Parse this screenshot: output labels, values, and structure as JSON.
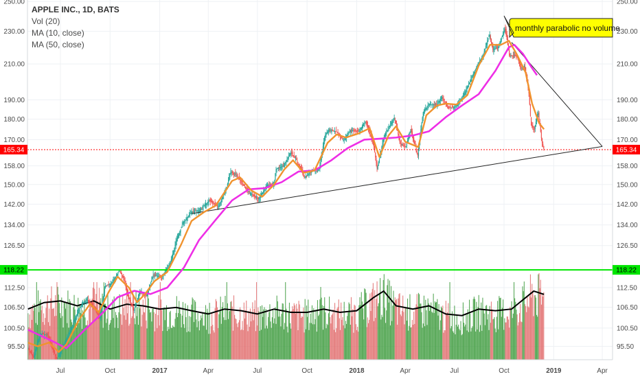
{
  "chart_data": {
    "type": "candlestick",
    "title": "APPLE INC., 1D, BATS",
    "indicators": [
      "Vol (20)",
      "MA (10, close)",
      "MA (50, close)"
    ],
    "y_scale": "log",
    "ylim": [
      92,
      251
    ],
    "price_ticks": [
      "250.00",
      "230.00",
      "210.00",
      "190.00",
      "180.00",
      "170.00",
      "158.00",
      "150.00",
      "142.00",
      "134.00",
      "126.50",
      "118.22",
      "112.50",
      "106.50",
      "100.50",
      "95.50"
    ],
    "price_tick_values": [
      250,
      230,
      210,
      190,
      180,
      170,
      158,
      150,
      142,
      134,
      126.5,
      118.22,
      112.5,
      106.5,
      100.5,
      95.5
    ],
    "time_ticks": [
      "Jul",
      "Oct",
      "2017",
      "Apr",
      "Jul",
      "Oct",
      "2018",
      "Apr",
      "Jul",
      "Oct",
      "2019",
      "Apr"
    ],
    "time_tick_dates": [
      "2016-07-01",
      "2016-10-01",
      "2017-01-01",
      "2017-04-01",
      "2017-07-01",
      "2017-10-01",
      "2018-01-01",
      "2018-04-01",
      "2018-07-01",
      "2018-10-01",
      "2019-01-01",
      "2019-04-01"
    ],
    "x_range": [
      "2016-05-01",
      "2019-04-20"
    ],
    "close_path": [
      [
        "2016-05-02",
        95.0
      ],
      [
        "2016-05-12",
        92.5
      ],
      [
        "2016-05-25",
        99.0
      ],
      [
        "2016-06-08",
        98.5
      ],
      [
        "2016-06-24",
        92.0
      ],
      [
        "2016-07-05",
        95.0
      ],
      [
        "2016-07-20",
        100.0
      ],
      [
        "2016-08-05",
        106.0
      ],
      [
        "2016-08-18",
        109.0
      ],
      [
        "2016-09-01",
        106.5
      ],
      [
        "2016-09-12",
        103.0
      ],
      [
        "2016-09-22",
        113.0
      ],
      [
        "2016-10-05",
        114.0
      ],
      [
        "2016-10-18",
        118.0
      ],
      [
        "2016-10-26",
        115.5
      ],
      [
        "2016-11-04",
        109.5
      ],
      [
        "2016-11-14",
        105.5
      ],
      [
        "2016-11-25",
        111.5
      ],
      [
        "2016-12-08",
        110.0
      ],
      [
        "2016-12-20",
        116.5
      ],
      [
        "2017-01-05",
        116.0
      ],
      [
        "2017-01-20",
        120.0
      ],
      [
        "2017-02-01",
        128.5
      ],
      [
        "2017-02-14",
        135.0
      ],
      [
        "2017-03-01",
        139.0
      ],
      [
        "2017-03-15",
        139.5
      ],
      [
        "2017-04-03",
        143.5
      ],
      [
        "2017-04-20",
        141.0
      ],
      [
        "2017-05-05",
        148.5
      ],
      [
        "2017-05-12",
        155.5
      ],
      [
        "2017-05-26",
        153.5
      ],
      [
        "2017-06-09",
        148.5
      ],
      [
        "2017-06-20",
        146.0
      ],
      [
        "2017-07-03",
        144.0
      ],
      [
        "2017-07-18",
        149.5
      ],
      [
        "2017-08-01",
        150.0
      ],
      [
        "2017-08-04",
        156.5
      ],
      [
        "2017-08-18",
        158.0
      ],
      [
        "2017-09-01",
        164.0
      ],
      [
        "2017-09-12",
        160.5
      ],
      [
        "2017-09-26",
        153.0
      ],
      [
        "2017-10-12",
        156.0
      ],
      [
        "2017-10-24",
        157.0
      ],
      [
        "2017-11-03",
        172.0
      ],
      [
        "2017-11-10",
        174.5
      ],
      [
        "2017-11-24",
        174.0
      ],
      [
        "2017-12-08",
        169.5
      ],
      [
        "2017-12-20",
        174.5
      ],
      [
        "2018-01-05",
        174.0
      ],
      [
        "2018-01-18",
        179.0
      ],
      [
        "2018-02-01",
        168.0
      ],
      [
        "2018-02-08",
        156.5
      ],
      [
        "2018-02-20",
        171.0
      ],
      [
        "2018-03-12",
        181.0
      ],
      [
        "2018-03-22",
        168.5
      ],
      [
        "2018-04-02",
        166.5
      ],
      [
        "2018-04-11",
        175.0
      ],
      [
        "2018-04-24",
        162.5
      ],
      [
        "2018-05-04",
        183.5
      ],
      [
        "2018-05-14",
        187.5
      ],
      [
        "2018-05-30",
        187.5
      ],
      [
        "2018-06-08",
        191.5
      ],
      [
        "2018-06-20",
        185.5
      ],
      [
        "2018-07-02",
        186.5
      ],
      [
        "2018-07-16",
        191.0
      ],
      [
        "2018-08-01",
        201.5
      ],
      [
        "2018-08-10",
        207.5
      ],
      [
        "2018-08-24",
        216.0
      ],
      [
        "2018-09-04",
        228.5
      ],
      [
        "2018-09-10",
        218.5
      ],
      [
        "2018-09-20",
        220.0
      ],
      [
        "2018-10-03",
        232.0
      ],
      [
        "2018-10-11",
        214.5
      ],
      [
        "2018-10-24",
        215.0
      ],
      [
        "2018-11-02",
        207.5
      ],
      [
        "2018-11-08",
        209.0
      ],
      [
        "2018-11-16",
        193.5
      ],
      [
        "2018-11-20",
        177.0
      ],
      [
        "2018-11-26",
        174.5
      ],
      [
        "2018-12-03",
        184.0
      ],
      [
        "2018-12-10",
        169.0
      ],
      [
        "2018-12-14",
        165.34
      ]
    ],
    "ma50_path": [
      [
        "2016-05-02",
        100.0
      ],
      [
        "2016-06-15",
        97.0
      ],
      [
        "2016-07-12",
        95.0
      ],
      [
        "2016-08-15",
        100.0
      ],
      [
        "2016-09-15",
        104.5
      ],
      [
        "2016-10-15",
        109.5
      ],
      [
        "2016-11-15",
        111.5
      ],
      [
        "2016-12-15",
        110.5
      ],
      [
        "2017-01-15",
        112.5
      ],
      [
        "2017-02-15",
        119.0
      ],
      [
        "2017-03-15",
        128.5
      ],
      [
        "2017-04-15",
        136.0
      ],
      [
        "2017-05-15",
        143.5
      ],
      [
        "2017-06-15",
        148.0
      ],
      [
        "2017-07-15",
        148.5
      ],
      [
        "2017-08-15",
        151.0
      ],
      [
        "2017-09-15",
        155.5
      ],
      [
        "2017-10-15",
        156.0
      ],
      [
        "2017-11-15",
        160.5
      ],
      [
        "2017-12-15",
        166.0
      ],
      [
        "2018-01-15",
        170.0
      ],
      [
        "2018-02-15",
        170.5
      ],
      [
        "2018-03-15",
        171.0
      ],
      [
        "2018-04-15",
        172.0
      ],
      [
        "2018-05-15",
        174.0
      ],
      [
        "2018-06-15",
        181.0
      ],
      [
        "2018-07-15",
        187.0
      ],
      [
        "2018-08-15",
        193.0
      ],
      [
        "2018-09-15",
        206.0
      ],
      [
        "2018-10-10",
        220.0
      ],
      [
        "2018-10-20",
        221.5
      ],
      [
        "2018-11-05",
        216.0
      ],
      [
        "2018-11-20",
        208.5
      ],
      [
        "2018-12-01",
        203.5
      ]
    ],
    "ma10_path": [
      [
        "2016-05-02",
        96.5
      ],
      [
        "2016-05-20",
        95.5
      ],
      [
        "2016-06-10",
        96.5
      ],
      [
        "2016-06-28",
        94.0
      ],
      [
        "2016-07-12",
        96.0
      ],
      [
        "2016-08-05",
        103.0
      ],
      [
        "2016-08-25",
        107.5
      ],
      [
        "2016-09-10",
        105.0
      ],
      [
        "2016-09-28",
        111.0
      ],
      [
        "2016-10-15",
        116.0
      ],
      [
        "2016-11-05",
        112.5
      ],
      [
        "2016-11-20",
        108.0
      ],
      [
        "2016-12-05",
        110.5
      ],
      [
        "2016-12-22",
        114.5
      ],
      [
        "2017-01-15",
        117.5
      ],
      [
        "2017-02-10",
        127.0
      ],
      [
        "2017-03-01",
        135.5
      ],
      [
        "2017-03-25",
        139.0
      ],
      [
        "2017-04-15",
        141.5
      ],
      [
        "2017-05-15",
        151.5
      ],
      [
        "2017-05-30",
        153.0
      ],
      [
        "2017-06-20",
        147.5
      ],
      [
        "2017-07-10",
        145.0
      ],
      [
        "2017-08-01",
        150.0
      ],
      [
        "2017-08-20",
        156.5
      ],
      [
        "2017-09-05",
        160.5
      ],
      [
        "2017-09-25",
        155.0
      ],
      [
        "2017-10-15",
        156.0
      ],
      [
        "2017-11-08",
        168.5
      ],
      [
        "2017-11-25",
        172.5
      ],
      [
        "2017-12-12",
        171.0
      ],
      [
        "2018-01-05",
        173.0
      ],
      [
        "2018-01-25",
        175.5
      ],
      [
        "2018-02-12",
        162.0
      ],
      [
        "2018-03-01",
        172.0
      ],
      [
        "2018-03-15",
        176.5
      ],
      [
        "2018-04-01",
        169.0
      ],
      [
        "2018-04-25",
        166.5
      ],
      [
        "2018-05-10",
        182.0
      ],
      [
        "2018-05-30",
        187.0
      ],
      [
        "2018-06-15",
        188.0
      ],
      [
        "2018-07-05",
        187.5
      ],
      [
        "2018-07-25",
        192.5
      ],
      [
        "2018-08-15",
        209.0
      ],
      [
        "2018-09-05",
        221.5
      ],
      [
        "2018-09-25",
        221.5
      ],
      [
        "2018-10-10",
        224.0
      ],
      [
        "2018-10-25",
        215.5
      ],
      [
        "2018-11-10",
        205.0
      ],
      [
        "2018-11-22",
        188.0
      ],
      [
        "2018-12-05",
        178.0
      ],
      [
        "2018-12-14",
        175.0
      ]
    ],
    "vol_ma_path": [
      [
        "2016-05-02",
        0.62
      ],
      [
        "2016-06-01",
        0.7
      ],
      [
        "2016-07-01",
        0.72
      ],
      [
        "2016-08-01",
        0.66
      ],
      [
        "2016-09-01",
        0.72
      ],
      [
        "2016-10-01",
        0.62
      ],
      [
        "2016-11-01",
        0.68
      ],
      [
        "2016-12-01",
        0.66
      ],
      [
        "2017-01-01",
        0.62
      ],
      [
        "2017-02-01",
        0.64
      ],
      [
        "2017-03-01",
        0.6
      ],
      [
        "2017-04-01",
        0.56
      ],
      [
        "2017-05-01",
        0.62
      ],
      [
        "2017-06-01",
        0.6
      ],
      [
        "2017-07-01",
        0.56
      ],
      [
        "2017-08-01",
        0.62
      ],
      [
        "2017-09-01",
        0.58
      ],
      [
        "2017-10-01",
        0.58
      ],
      [
        "2017-11-01",
        0.62
      ],
      [
        "2017-12-01",
        0.58
      ],
      [
        "2018-01-01",
        0.6
      ],
      [
        "2018-02-01",
        0.76
      ],
      [
        "2018-02-20",
        0.84
      ],
      [
        "2018-03-15",
        0.66
      ],
      [
        "2018-04-15",
        0.62
      ],
      [
        "2018-05-15",
        0.66
      ],
      [
        "2018-06-15",
        0.56
      ],
      [
        "2018-07-15",
        0.54
      ],
      [
        "2018-08-15",
        0.62
      ],
      [
        "2018-09-15",
        0.6
      ],
      [
        "2018-10-15",
        0.62
      ],
      [
        "2018-11-10",
        0.76
      ],
      [
        "2018-11-25",
        0.84
      ],
      [
        "2018-12-14",
        0.8
      ]
    ],
    "horizontal_lines": [
      {
        "value": 165.34,
        "label": "165.34",
        "color": "#ff0000",
        "style": "dotted"
      },
      {
        "value": 118.22,
        "label": "118.22",
        "color": "#00e600",
        "style": "solid"
      }
    ],
    "trend_line": {
      "points": [
        [
          "2017-03-01",
          138.3
        ],
        [
          "2019-04-01",
          166.8
        ]
      ]
    },
    "resistance_line": {
      "points": [
        [
          "2018-10-15",
          223.0
        ],
        [
          "2019-04-01",
          166.8
        ]
      ]
    },
    "annotation": {
      "text": "monthly parabolic no volume",
      "date": "2018-10-01",
      "value": 232
    },
    "colors": {
      "up": "#26a69a",
      "down": "#ef5350",
      "volume_up": "#3c9a3c",
      "volume_down": "#e06a6a",
      "ma10": "#f0932e",
      "ma50": "#ee2ee6",
      "vol_ma": "#000000",
      "last_price": "#ff0000",
      "support": "#00e600",
      "annotation_bg": "#ffff00"
    }
  }
}
